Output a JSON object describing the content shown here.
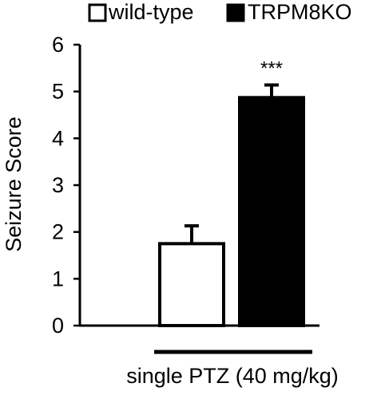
{
  "chart_data": {
    "type": "bar",
    "categories": [
      "single PTZ (40 mg/kg)"
    ],
    "series": [
      {
        "name": "wild-type",
        "values": [
          1.75
        ],
        "error": [
          0.38
        ],
        "fill": "#ffffff",
        "stroke": "#000000"
      },
      {
        "name": "TRPM8KO",
        "values": [
          4.87
        ],
        "error": [
          0.27
        ],
        "fill": "#000000",
        "stroke": "#000000"
      }
    ],
    "ylabel": "Seizure Score",
    "xlabel": "single PTZ (40 mg/kg)",
    "ylim": [
      0,
      6
    ],
    "yticks": [
      0,
      1,
      2,
      3,
      4,
      5,
      6
    ],
    "annotations": [
      {
        "series": "TRPM8KO",
        "text": "***"
      }
    ],
    "legend": {
      "placement": "top"
    },
    "grid": false
  }
}
